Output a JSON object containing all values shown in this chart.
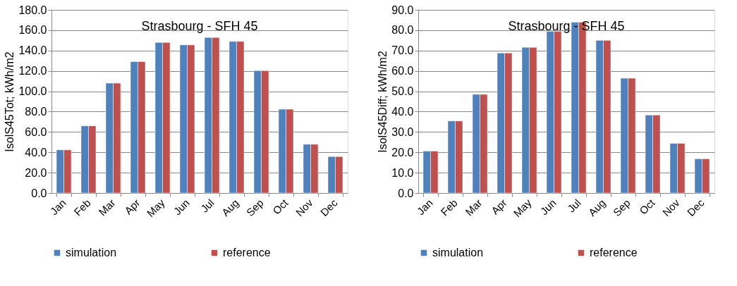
{
  "chart_data": [
    {
      "type": "bar",
      "title": "Strasbourg - SFH 45",
      "ylabel": "IsolS45Tot; kWh/m2",
      "categories": [
        "Jan",
        "Feb",
        "Mar",
        "Apr",
        "May",
        "Jun",
        "Jul",
        "Aug",
        "Sep",
        "Oct",
        "Nov",
        "Dec"
      ],
      "series": [
        {
          "name": "simulation",
          "color": "#4f81bd",
          "values": [
            42.4,
            66.0,
            108.0,
            129.2,
            147.9,
            145.6,
            152.9,
            149.0,
            120.3,
            82.4,
            47.9,
            35.8
          ]
        },
        {
          "name": "reference",
          "color": "#c0504d",
          "values": [
            42.4,
            66.0,
            108.0,
            129.2,
            147.9,
            145.6,
            152.9,
            149.0,
            120.3,
            82.4,
            47.9,
            35.8
          ]
        }
      ],
      "ylim": [
        0,
        180
      ],
      "yticks": [
        {
          "value": 0,
          "label": "0.0"
        },
        {
          "value": 20,
          "label": "20.0"
        },
        {
          "value": 40,
          "label": "40.0"
        },
        {
          "value": 60,
          "label": "60.0"
        },
        {
          "value": 80,
          "label": "80.0"
        },
        {
          "value": 100,
          "label": "100.0"
        },
        {
          "value": 120,
          "label": "120.0"
        },
        {
          "value": 140,
          "label": "140.0"
        },
        {
          "value": 160,
          "label": "160.0"
        },
        {
          "value": 180,
          "label": "180.0"
        }
      ],
      "grid": "y",
      "legend": "bottom"
    },
    {
      "type": "bar",
      "title": "Strasbourg - SFH 45",
      "ylabel": "IsolS45Diff; kWh/m2",
      "categories": [
        "Jan",
        "Feb",
        "Mar",
        "Apr",
        "May",
        "Jun",
        "Jul",
        "Aug",
        "Sep",
        "Oct",
        "Nov",
        "Dec"
      ],
      "series": [
        {
          "name": "simulation",
          "color": "#4f81bd",
          "values": [
            20.6,
            35.4,
            48.5,
            68.8,
            71.6,
            79.4,
            83.9,
            75.0,
            56.4,
            38.3,
            24.4,
            16.8
          ]
        },
        {
          "name": "reference",
          "color": "#c0504d",
          "values": [
            20.6,
            35.4,
            48.5,
            68.8,
            71.6,
            79.4,
            83.9,
            75.0,
            56.4,
            38.3,
            24.4,
            16.8
          ]
        }
      ],
      "ylim": [
        0,
        90
      ],
      "yticks": [
        {
          "value": 0,
          "label": "0.0"
        },
        {
          "value": 10,
          "label": "10.0"
        },
        {
          "value": 20,
          "label": "20.0"
        },
        {
          "value": 30,
          "label": "30.0"
        },
        {
          "value": 40,
          "label": "40.0"
        },
        {
          "value": 50,
          "label": "50.0"
        },
        {
          "value": 60,
          "label": "60.0"
        },
        {
          "value": 70,
          "label": "70.0"
        },
        {
          "value": 80,
          "label": "80.0"
        },
        {
          "value": 90,
          "label": "90.0"
        }
      ],
      "grid": "y",
      "legend": "bottom"
    }
  ]
}
